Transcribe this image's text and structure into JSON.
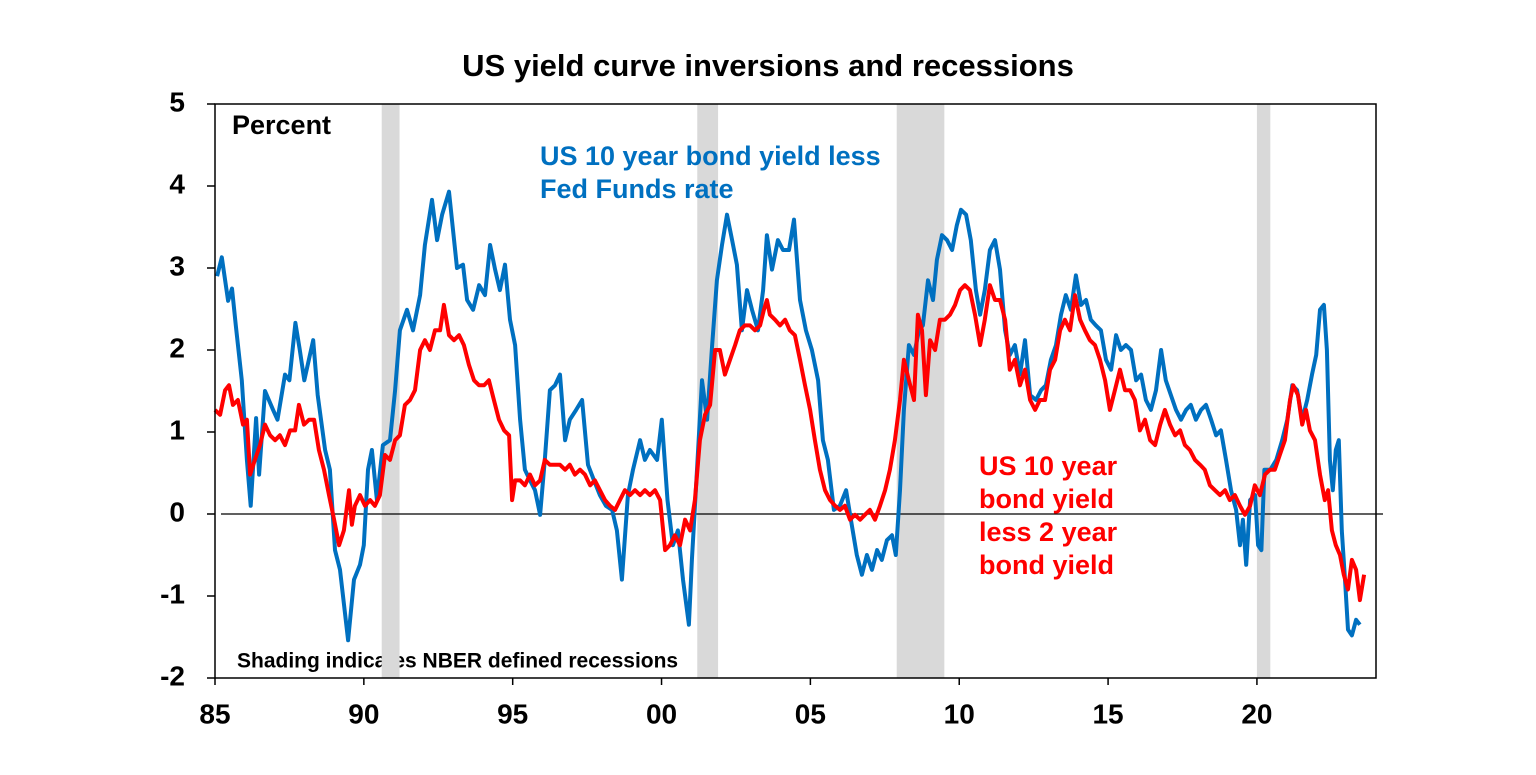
{
  "chart_data": {
    "type": "line",
    "title": "US yield curve inversions and recessions",
    "y_label": "Percent",
    "note": "Shading indicates NBER defined recessions",
    "xlim": [
      1985,
      2024
    ],
    "ylim": [
      -2,
      5
    ],
    "xticks": [
      {
        "value": 1985,
        "label": "85"
      },
      {
        "value": 1990,
        "label": "90"
      },
      {
        "value": 1995,
        "label": "95"
      },
      {
        "value": 2000,
        "label": "00"
      },
      {
        "value": 2005,
        "label": "05"
      },
      {
        "value": 2010,
        "label": "10"
      },
      {
        "value": 2015,
        "label": "15"
      },
      {
        "value": 2020,
        "label": "20"
      }
    ],
    "yticks": [
      -2,
      -1,
      0,
      1,
      2,
      3,
      4,
      5
    ],
    "hline": 0,
    "recession_color": "#d9d9d9",
    "recessions": [
      {
        "start": 1990.6,
        "end": 1991.2
      },
      {
        "start": 2001.2,
        "end": 2001.9
      },
      {
        "start": 2007.9,
        "end": 2009.5
      },
      {
        "start": 2020.0,
        "end": 2020.45
      }
    ],
    "series": [
      {
        "name": "US 10 year bond yield less Fed Funds rate",
        "color": "#0070c0",
        "x": [
          1985.07,
          1985.23,
          1985.44,
          1985.57,
          1985.7,
          1985.9,
          1986.07,
          1986.2,
          1986.38,
          1986.48,
          1986.68,
          1986.95,
          1987.1,
          1987.35,
          1987.5,
          1987.7,
          1987.85,
          1988.0,
          1988.3,
          1988.45,
          1988.7,
          1988.86,
          1989.03,
          1989.2,
          1989.47,
          1989.67,
          1989.87,
          1990.0,
          1990.14,
          1990.27,
          1990.44,
          1990.64,
          1990.88,
          1991.05,
          1991.21,
          1991.45,
          1991.65,
          1991.89,
          1992.05,
          1992.29,
          1992.46,
          1992.63,
          1992.86,
          1993.13,
          1993.33,
          1993.47,
          1993.67,
          1993.87,
          1994.07,
          1994.24,
          1994.41,
          1994.57,
          1994.74,
          1994.91,
          1995.08,
          1995.25,
          1995.41,
          1995.58,
          1995.75,
          1995.92,
          1996.08,
          1996.25,
          1996.42,
          1996.59,
          1996.76,
          1996.92,
          1997.13,
          1997.33,
          1997.53,
          1997.73,
          1997.93,
          1998.13,
          1998.34,
          1998.5,
          1998.67,
          1998.87,
          1999.04,
          1999.28,
          1999.44,
          1999.61,
          1999.85,
          2000.01,
          2000.2,
          2000.38,
          2000.55,
          2000.72,
          2000.92,
          2001.02,
          2001.19,
          2001.36,
          2001.53,
          2001.69,
          2001.86,
          2002.03,
          2002.2,
          2002.37,
          2002.53,
          2002.7,
          2002.87,
          2003.04,
          2003.24,
          2003.41,
          2003.54,
          2003.71,
          2003.91,
          2004.08,
          2004.28,
          2004.45,
          2004.65,
          2004.85,
          2005.05,
          2005.26,
          2005.42,
          2005.59,
          2005.79,
          2005.99,
          2006.2,
          2006.36,
          2006.56,
          2006.73,
          2006.9,
          2007.07,
          2007.24,
          2007.4,
          2007.57,
          2007.74,
          2007.87,
          2008.01,
          2008.14,
          2008.31,
          2008.48,
          2008.65,
          2008.78,
          2008.95,
          2009.12,
          2009.25,
          2009.42,
          2009.59,
          2009.76,
          2009.92,
          2010.06,
          2010.23,
          2010.39,
          2010.56,
          2010.7,
          2010.86,
          2011.03,
          2011.2,
          2011.37,
          2011.54,
          2011.7,
          2011.87,
          2012.04,
          2012.21,
          2012.38,
          2012.58,
          2012.75,
          2012.91,
          2013.08,
          2013.25,
          2013.42,
          2013.58,
          2013.75,
          2013.92,
          2014.09,
          2014.26,
          2014.42,
          2014.59,
          2014.76,
          2014.93,
          2015.1,
          2015.27,
          2015.43,
          2015.6,
          2015.77,
          2015.94,
          2016.11,
          2016.27,
          2016.44,
          2016.61,
          2016.78,
          2016.94,
          2017.11,
          2017.28,
          2017.45,
          2017.62,
          2017.78,
          2017.95,
          2018.12,
          2018.29,
          2018.46,
          2018.63,
          2018.79,
          2018.96,
          2019.13,
          2019.3,
          2019.43,
          2019.53,
          2019.64,
          2019.77,
          2019.94,
          2020.04,
          2020.15,
          2020.25,
          2020.45,
          2020.65,
          2020.85,
          2021.02,
          2021.19,
          2021.35,
          2021.52,
          2021.69,
          2021.85,
          2021.99,
          2022.12,
          2022.25,
          2022.35,
          2022.45,
          2022.55,
          2022.65,
          2022.75,
          2022.85,
          2022.96,
          2023.06,
          2023.19,
          2023.33,
          2023.46
        ],
        "values": [
          2.9,
          3.13,
          2.6,
          2.75,
          2.3,
          1.63,
          0.66,
          0.1,
          1.17,
          0.48,
          1.5,
          1.27,
          1.15,
          1.7,
          1.63,
          2.33,
          2.0,
          1.63,
          2.12,
          1.45,
          0.78,
          0.54,
          -0.44,
          -0.68,
          -1.54,
          -0.8,
          -0.62,
          -0.38,
          0.54,
          0.78,
          0.17,
          0.84,
          0.9,
          1.51,
          2.24,
          2.49,
          2.24,
          2.67,
          3.28,
          3.83,
          3.34,
          3.65,
          3.93,
          3.0,
          3.04,
          2.61,
          2.49,
          2.79,
          2.67,
          3.28,
          2.98,
          2.73,
          3.04,
          2.37,
          2.06,
          1.15,
          0.54,
          0.41,
          0.29,
          -0.01,
          0.66,
          1.51,
          1.57,
          1.7,
          0.9,
          1.15,
          1.27,
          1.39,
          0.6,
          0.41,
          0.23,
          0.1,
          0.05,
          -0.2,
          -0.8,
          0.23,
          0.54,
          0.9,
          0.66,
          0.78,
          0.66,
          1.15,
          0.17,
          -0.38,
          -0.2,
          -0.8,
          -1.35,
          -0.56,
          0.54,
          1.63,
          1.15,
          2.0,
          2.85,
          3.28,
          3.65,
          3.34,
          3.04,
          2.24,
          2.73,
          2.49,
          2.24,
          2.73,
          3.4,
          2.98,
          3.34,
          3.22,
          3.22,
          3.59,
          2.61,
          2.24,
          2.0,
          1.63,
          0.9,
          0.66,
          0.05,
          0.1,
          0.29,
          -0.07,
          -0.5,
          -0.74,
          -0.5,
          -0.68,
          -0.44,
          -0.56,
          -0.32,
          -0.26,
          -0.5,
          0.29,
          1.27,
          2.06,
          1.94,
          2.24,
          2.3,
          2.85,
          2.61,
          3.1,
          3.4,
          3.34,
          3.22,
          3.52,
          3.71,
          3.65,
          3.34,
          2.73,
          2.43,
          2.73,
          3.22,
          3.34,
          2.98,
          2.24,
          1.94,
          2.06,
          1.7,
          2.12,
          1.45,
          1.39,
          1.51,
          1.57,
          1.88,
          2.06,
          2.43,
          2.67,
          2.49,
          2.91,
          2.55,
          2.61,
          2.37,
          2.3,
          2.24,
          1.88,
          1.76,
          2.18,
          2.0,
          2.06,
          2.0,
          1.63,
          1.7,
          1.39,
          1.27,
          1.51,
          2.0,
          1.63,
          1.45,
          1.27,
          1.15,
          1.27,
          1.33,
          1.15,
          1.27,
          1.33,
          1.15,
          0.96,
          1.02,
          0.66,
          0.29,
          0.05,
          -0.38,
          -0.07,
          -0.62,
          0.17,
          0.23,
          -0.38,
          -0.44,
          0.54,
          0.54,
          0.66,
          0.9,
          1.15,
          1.57,
          1.51,
          1.15,
          1.39,
          1.7,
          1.94,
          2.49,
          2.55,
          2.0,
          0.66,
          0.29,
          0.78,
          0.9,
          -0.2,
          -0.8,
          -1.41,
          -1.48,
          -1.29,
          -1.35
        ]
      },
      {
        "name": "US 10 year bond yield less 2 year bond yield",
        "color": "#ff0000",
        "x": [
          1985.0,
          1985.17,
          1985.34,
          1985.47,
          1985.6,
          1985.77,
          1985.94,
          1986.07,
          1986.18,
          1986.34,
          1986.51,
          1986.68,
          1986.85,
          1987.02,
          1987.18,
          1987.35,
          1987.52,
          1987.69,
          1987.82,
          1987.99,
          1988.16,
          1988.33,
          1988.49,
          1988.66,
          1988.83,
          1989.0,
          1989.17,
          1989.33,
          1989.5,
          1989.6,
          1989.7,
          1989.87,
          1990.04,
          1990.21,
          1990.37,
          1990.54,
          1990.71,
          1990.88,
          1991.05,
          1991.21,
          1991.38,
          1991.55,
          1991.72,
          1991.89,
          1992.05,
          1992.22,
          1992.39,
          1992.56,
          1992.69,
          1992.86,
          1993.03,
          1993.2,
          1993.36,
          1993.53,
          1993.7,
          1993.87,
          1994.04,
          1994.2,
          1994.37,
          1994.54,
          1994.71,
          1994.88,
          1994.98,
          1995.08,
          1995.25,
          1995.41,
          1995.58,
          1995.75,
          1995.92,
          1996.08,
          1996.25,
          1996.42,
          1996.59,
          1996.76,
          1996.92,
          1997.09,
          1997.26,
          1997.43,
          1997.6,
          1997.76,
          1997.93,
          1998.1,
          1998.27,
          1998.44,
          1998.6,
          1998.77,
          1998.94,
          1999.11,
          1999.28,
          1999.44,
          1999.61,
          1999.78,
          1999.95,
          2000.12,
          2000.28,
          2000.45,
          2000.62,
          2000.79,
          2000.96,
          2001.12,
          2001.29,
          2001.46,
          2001.63,
          2001.8,
          2001.96,
          2002.13,
          2002.3,
          2002.47,
          2002.63,
          2002.8,
          2002.97,
          2003.14,
          2003.31,
          2003.44,
          2003.54,
          2003.64,
          2003.81,
          2003.98,
          2004.15,
          2004.31,
          2004.48,
          2004.65,
          2004.82,
          2004.99,
          2005.15,
          2005.32,
          2005.49,
          2005.66,
          2005.83,
          2005.99,
          2006.16,
          2006.33,
          2006.5,
          2006.67,
          2006.83,
          2007.0,
          2007.17,
          2007.34,
          2007.51,
          2007.67,
          2007.84,
          2008.01,
          2008.14,
          2008.31,
          2008.48,
          2008.61,
          2008.75,
          2008.88,
          2009.02,
          2009.19,
          2009.35,
          2009.52,
          2009.69,
          2009.86,
          2010.03,
          2010.19,
          2010.36,
          2010.53,
          2010.7,
          2010.86,
          2011.03,
          2011.2,
          2011.37,
          2011.54,
          2011.7,
          2011.87,
          2012.04,
          2012.21,
          2012.38,
          2012.55,
          2012.71,
          2012.88,
          2013.05,
          2013.22,
          2013.39,
          2013.55,
          2013.72,
          2013.89,
          2014.06,
          2014.22,
          2014.39,
          2014.56,
          2014.73,
          2014.9,
          2015.06,
          2015.23,
          2015.4,
          2015.57,
          2015.74,
          2015.9,
          2016.07,
          2016.24,
          2016.41,
          2016.58,
          2016.75,
          2016.91,
          2017.08,
          2017.25,
          2017.42,
          2017.58,
          2017.75,
          2017.92,
          2018.09,
          2018.25,
          2018.42,
          2018.59,
          2018.76,
          2018.93,
          2019.09,
          2019.26,
          2019.43,
          2019.6,
          2019.77,
          2019.93,
          2020.1,
          2020.27,
          2020.44,
          2020.6,
          2020.77,
          2020.94,
          2021.11,
          2021.22,
          2021.38,
          2021.52,
          2021.65,
          2021.78,
          2021.95,
          2022.12,
          2022.28,
          2022.39,
          2022.52,
          2022.65,
          2022.79,
          2022.92,
          2023.06,
          2023.19,
          2023.33,
          2023.46,
          2023.6
        ],
        "values": [
          1.27,
          1.21,
          1.51,
          1.57,
          1.33,
          1.39,
          1.09,
          1.15,
          0.48,
          0.66,
          0.84,
          1.09,
          0.96,
          0.9,
          0.96,
          0.84,
          1.02,
          1.02,
          1.33,
          1.09,
          1.15,
          1.15,
          0.78,
          0.54,
          0.23,
          -0.07,
          -0.38,
          -0.2,
          0.29,
          -0.13,
          0.1,
          0.23,
          0.1,
          0.17,
          0.1,
          0.23,
          0.72,
          0.66,
          0.9,
          0.96,
          1.33,
          1.39,
          1.51,
          2.0,
          2.12,
          2.0,
          2.24,
          2.24,
          2.55,
          2.18,
          2.12,
          2.18,
          2.06,
          1.82,
          1.63,
          1.57,
          1.57,
          1.63,
          1.39,
          1.15,
          1.02,
          0.96,
          0.17,
          0.41,
          0.41,
          0.35,
          0.48,
          0.35,
          0.41,
          0.66,
          0.6,
          0.6,
          0.6,
          0.54,
          0.6,
          0.48,
          0.54,
          0.48,
          0.35,
          0.41,
          0.29,
          0.17,
          0.1,
          0.05,
          0.17,
          0.29,
          0.23,
          0.29,
          0.23,
          0.29,
          0.23,
          0.29,
          0.17,
          -0.44,
          -0.38,
          -0.26,
          -0.38,
          -0.07,
          -0.2,
          0.17,
          0.9,
          1.21,
          1.33,
          2.0,
          2.0,
          1.7,
          1.88,
          2.06,
          2.24,
          2.3,
          2.3,
          2.24,
          2.3,
          2.49,
          2.61,
          2.43,
          2.37,
          2.3,
          2.37,
          2.24,
          2.18,
          1.88,
          1.57,
          1.27,
          0.9,
          0.54,
          0.29,
          0.17,
          0.1,
          0.05,
          0.1,
          -0.07,
          -0.01,
          -0.07,
          -0.01,
          0.05,
          -0.07,
          0.1,
          0.29,
          0.54,
          0.9,
          1.39,
          1.88,
          1.63,
          1.39,
          2.43,
          2.24,
          1.45,
          2.12,
          2.0,
          2.37,
          2.37,
          2.43,
          2.55,
          2.73,
          2.79,
          2.73,
          2.43,
          2.06,
          2.37,
          2.79,
          2.61,
          2.61,
          2.37,
          1.76,
          1.88,
          1.57,
          1.76,
          1.39,
          1.27,
          1.39,
          1.39,
          1.76,
          1.88,
          2.24,
          2.37,
          2.24,
          2.67,
          2.37,
          2.24,
          2.12,
          2.06,
          1.88,
          1.63,
          1.27,
          1.51,
          1.76,
          1.51,
          1.51,
          1.39,
          1.02,
          1.15,
          0.9,
          0.84,
          1.09,
          1.27,
          1.09,
          0.96,
          1.02,
          0.84,
          0.78,
          0.66,
          0.6,
          0.54,
          0.35,
          0.29,
          0.23,
          0.29,
          0.17,
          0.23,
          0.1,
          -0.01,
          0.1,
          0.35,
          0.23,
          0.48,
          0.54,
          0.54,
          0.72,
          0.9,
          1.39,
          1.57,
          1.45,
          1.09,
          1.27,
          1.02,
          0.9,
          0.48,
          0.17,
          0.29,
          -0.2,
          -0.38,
          -0.5,
          -0.74,
          -0.92,
          -0.56,
          -0.68,
          -1.05,
          -0.74
        ]
      }
    ]
  }
}
